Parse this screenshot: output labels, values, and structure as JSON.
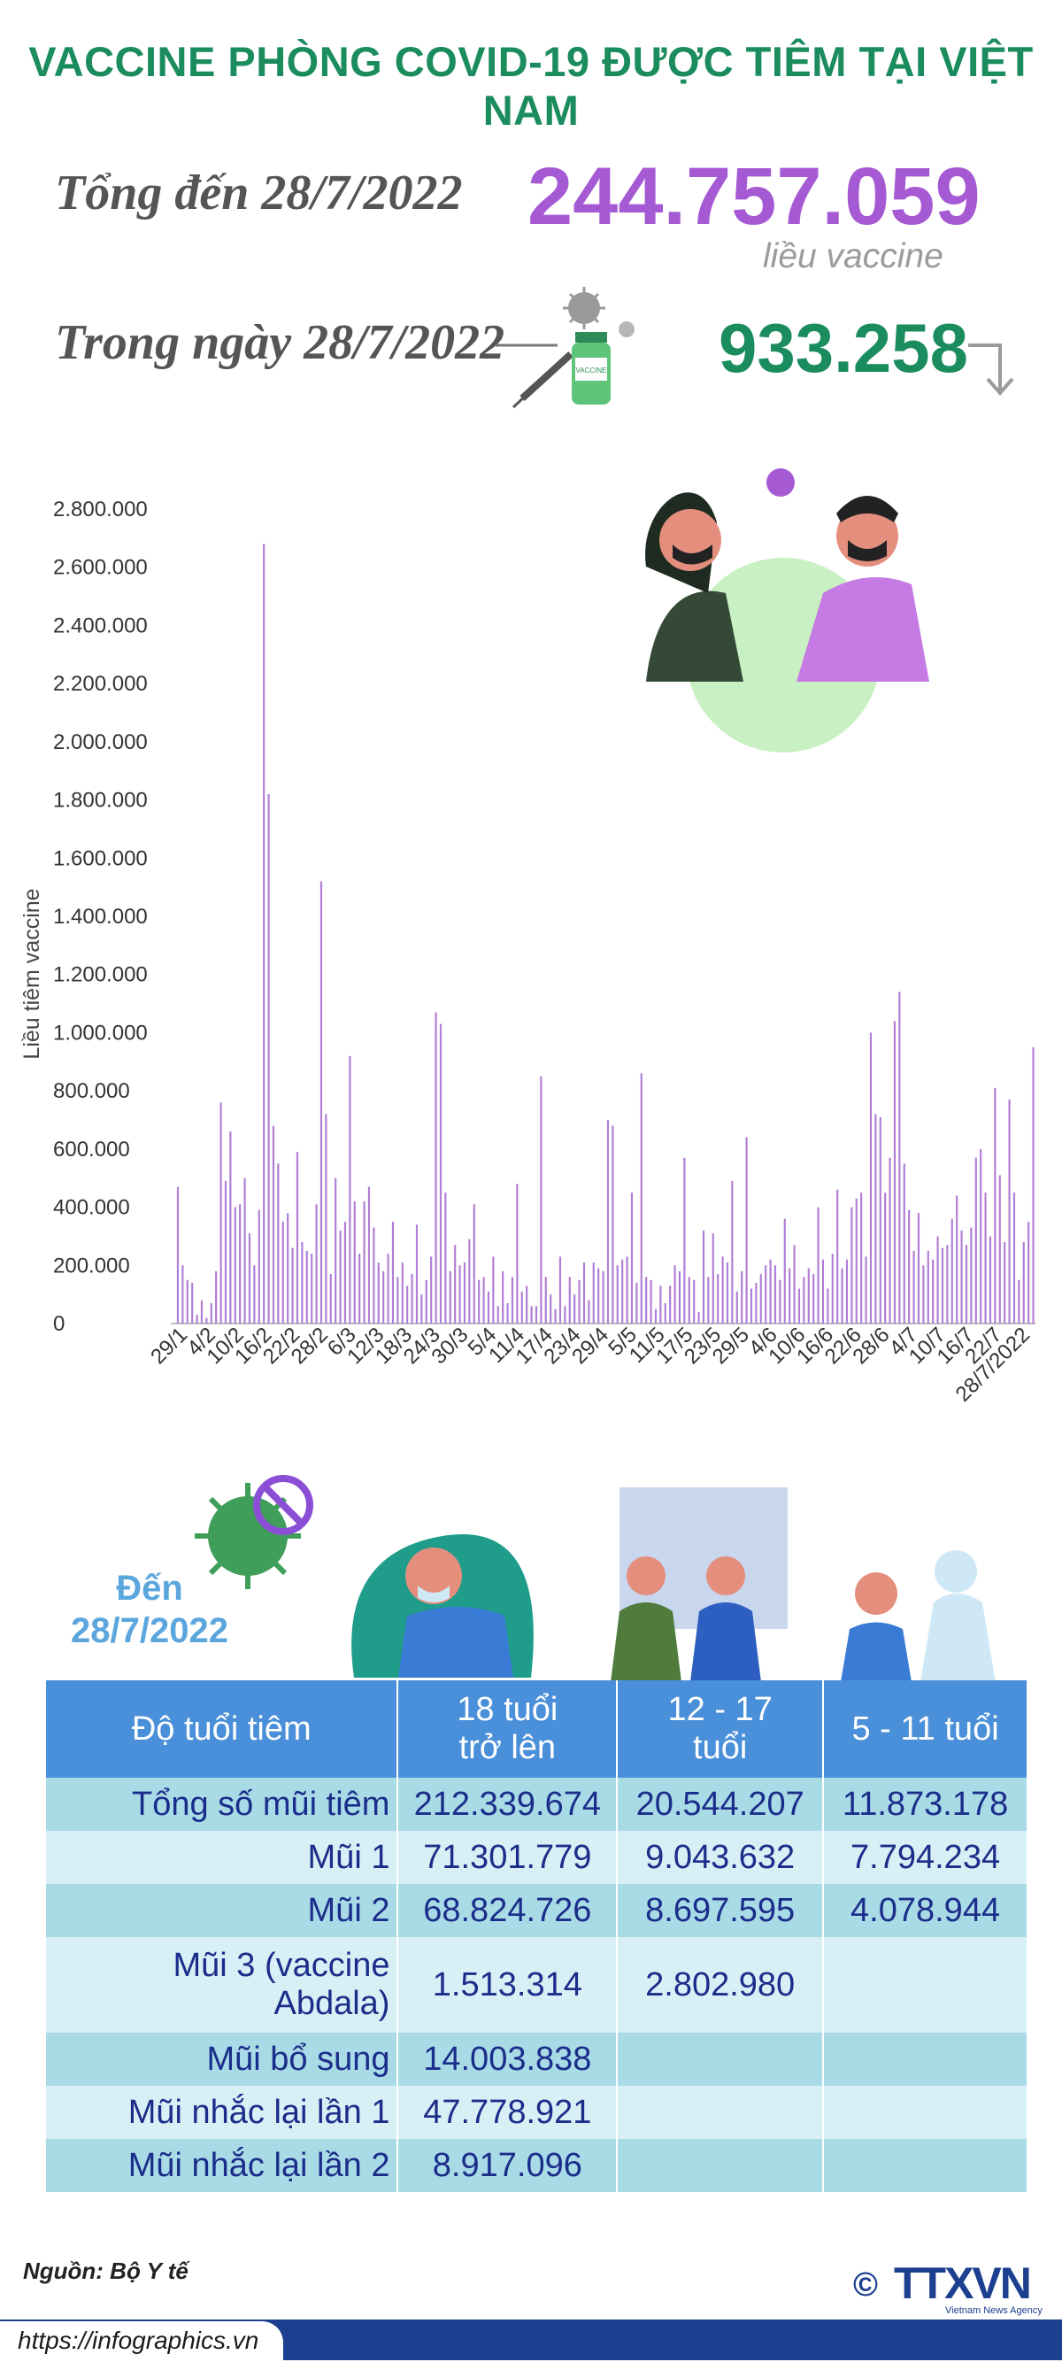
{
  "header": {
    "title": "VACCINE PHÒNG COVID-19 ĐƯỢC TIÊM TẠI VIỆT NAM",
    "total_label": "Tổng đến 28/7/2022",
    "total_value": "244.757.059",
    "total_unit": "liều vaccine",
    "day_label": "Trong ngày 28/7/2022",
    "day_value": "933.258",
    "vial_text": "VACCINE"
  },
  "colors": {
    "green": "#1a8c5e",
    "purple": "#a55ad4",
    "bar": "#b07ed6",
    "table_header": "#4a8fd9",
    "footer": "#1c3f8f"
  },
  "chart_data": {
    "type": "bar",
    "ylabel": "Liều tiêm vaccine",
    "ylim": [
      0,
      2800000
    ],
    "yticks": [
      "2.800.000",
      "2.600.000",
      "2.400.000",
      "2.200.000",
      "2.000.000",
      "1.800.000",
      "1.600.000",
      "1.400.000",
      "1.200.000",
      "1.000.000",
      "800.000",
      "600.000",
      "400.000",
      "200.000",
      "0"
    ],
    "xticks": [
      "29/1",
      "4/2",
      "10/2",
      "16/2",
      "22/2",
      "28/2",
      "6/3",
      "12/3",
      "18/3",
      "24/3",
      "30/3",
      "5/4",
      "11/4",
      "17/4",
      "23/4",
      "29/4",
      "5/5",
      "11/5",
      "17/5",
      "23/5",
      "29/5",
      "4/6",
      "10/6",
      "16/6",
      "22/6",
      "28/6",
      "4/7",
      "10/7",
      "16/7",
      "22/7",
      "28/7/2022"
    ],
    "values": [
      470000,
      200000,
      150000,
      140000,
      30000,
      80000,
      20000,
      70000,
      180000,
      760000,
      490000,
      660000,
      400000,
      410000,
      500000,
      310000,
      200000,
      390000,
      2680000,
      1820000,
      680000,
      550000,
      350000,
      380000,
      260000,
      590000,
      280000,
      250000,
      240000,
      410000,
      1520000,
      720000,
      170000,
      500000,
      320000,
      350000,
      920000,
      420000,
      240000,
      420000,
      470000,
      330000,
      210000,
      180000,
      240000,
      350000,
      160000,
      210000,
      130000,
      170000,
      340000,
      100000,
      150000,
      230000,
      1070000,
      1030000,
      450000,
      180000,
      270000,
      200000,
      210000,
      290000,
      410000,
      150000,
      160000,
      110000,
      230000,
      60000,
      180000,
      70000,
      160000,
      480000,
      110000,
      130000,
      60000,
      60000,
      850000,
      160000,
      100000,
      50000,
      230000,
      60000,
      160000,
      100000,
      150000,
      210000,
      80000,
      210000,
      190000,
      180000,
      700000,
      680000,
      200000,
      220000,
      230000,
      450000,
      140000,
      860000,
      160000,
      150000,
      50000,
      130000,
      70000,
      130000,
      200000,
      180000,
      570000,
      160000,
      150000,
      40000,
      320000,
      160000,
      310000,
      170000,
      230000,
      210000,
      490000,
      110000,
      180000,
      640000,
      120000,
      140000,
      170000,
      200000,
      220000,
      200000,
      150000,
      360000,
      190000,
      270000,
      120000,
      160000,
      190000,
      170000,
      400000,
      220000,
      120000,
      240000,
      460000,
      190000,
      220000,
      400000,
      430000,
      450000,
      230000,
      1000000,
      720000,
      710000,
      450000,
      570000,
      1040000,
      1140000,
      550000,
      390000,
      250000,
      380000,
      200000,
      250000,
      220000,
      300000,
      260000,
      270000,
      360000,
      440000,
      320000,
      270000,
      330000,
      570000,
      600000,
      450000,
      300000,
      810000,
      510000,
      280000,
      770000,
      450000,
      150000,
      280000,
      350000,
      950000
    ]
  },
  "den": {
    "line1": "Đến",
    "line2": "28/7/2022"
  },
  "table": {
    "headers": [
      "Độ tuổi tiêm",
      "18 tuổi\ntrở lên",
      "12 - 17\ntuổi",
      "5 - 11 tuổi"
    ],
    "rows": [
      [
        "Tổng số mũi tiêm",
        "212.339.674",
        "20.544.207",
        "11.873.178"
      ],
      [
        "Mũi 1",
        "71.301.779",
        "9.043.632",
        "7.794.234"
      ],
      [
        "Mũi 2",
        "68.824.726",
        "8.697.595",
        "4.078.944"
      ],
      [
        "Mũi 3 (vaccine\nAbdala)",
        "1.513.314",
        "2.802.980",
        ""
      ],
      [
        "Mũi bổ sung",
        "14.003.838",
        "",
        ""
      ],
      [
        "Mũi nhắc lại lần 1",
        "47.778.921",
        "",
        ""
      ],
      [
        "Mũi nhắc lại lần 2",
        "8.917.096",
        "",
        ""
      ]
    ]
  },
  "footer": {
    "source": "Nguồn: Bộ Y tế",
    "url": "https://infographics.vn",
    "copyright": "©",
    "logo": "TTXVN",
    "logo_sub": "Vietnam News Agency"
  }
}
